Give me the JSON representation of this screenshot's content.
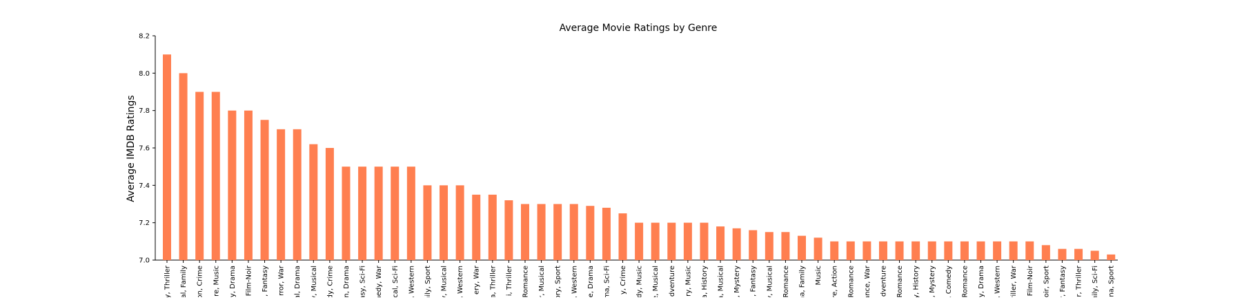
{
  "chart_data": {
    "type": "bar",
    "title": "Average Movie Ratings by Genre",
    "xlabel": "",
    "ylabel": "Average IMDB Ratings",
    "ylim": [
      7.0,
      8.2
    ],
    "yticks": [
      "7.0",
      "7.2",
      "7.4",
      "7.6",
      "7.8",
      "8.0",
      "8.2"
    ],
    "grid": false,
    "legend": "none",
    "bar_color": "#ff7f50",
    "categories": [
      "y, Thriller",
      "al, Family",
      "on, Crime",
      "re, Music",
      "y, Drama",
      "Film-Noir",
      ", Fantasy",
      "rror, War",
      "al, Drama",
      "y, Musical",
      "dy, Crime",
      "n, Drama",
      "asy, Sci-Fi",
      "nedy, War",
      "ical, Sci-Fi",
      ", Western",
      "nily, Sport",
      "y, Musical",
      ", Western",
      "ery, War",
      "a, Thriller",
      "i, Thriller",
      "Romance",
      "r, Musical",
      "ory, Sport",
      ", Western",
      "e, Drama",
      "ma, Sci-Fi",
      "y, Crime",
      "dy, Music",
      "e, Musical",
      "dventure",
      "ry, Music",
      "a, History",
      "a, Musical",
      ", Mystery",
      ", Fantasy",
      "y, Musical",
      "Romance",
      "na, Family",
      "Music",
      "re, Action",
      "Romance",
      "ance, War",
      "dventure",
      "Romance",
      "y, History",
      ", Mystery",
      ", Comedy",
      "Romance",
      "y, Drama",
      ", Western",
      "riller, War",
      "Film-Noir",
      "oir, Sport",
      "r, Fantasy",
      "r, Thriller",
      "nily, Sci-Fi",
      "na, Sport"
    ],
    "values": [
      8.1,
      8.0,
      7.9,
      7.9,
      7.8,
      7.8,
      7.75,
      7.7,
      7.7,
      7.62,
      7.6,
      7.5,
      7.5,
      7.5,
      7.5,
      7.5,
      7.4,
      7.4,
      7.4,
      7.35,
      7.35,
      7.32,
      7.3,
      7.3,
      7.3,
      7.3,
      7.29,
      7.28,
      7.25,
      7.2,
      7.2,
      7.2,
      7.2,
      7.2,
      7.18,
      7.17,
      7.16,
      7.15,
      7.15,
      7.13,
      7.12,
      7.1,
      7.1,
      7.1,
      7.1,
      7.1,
      7.1,
      7.1,
      7.1,
      7.1,
      7.1,
      7.1,
      7.1,
      7.1,
      7.08,
      7.06,
      7.06,
      7.05,
      7.03
    ]
  }
}
